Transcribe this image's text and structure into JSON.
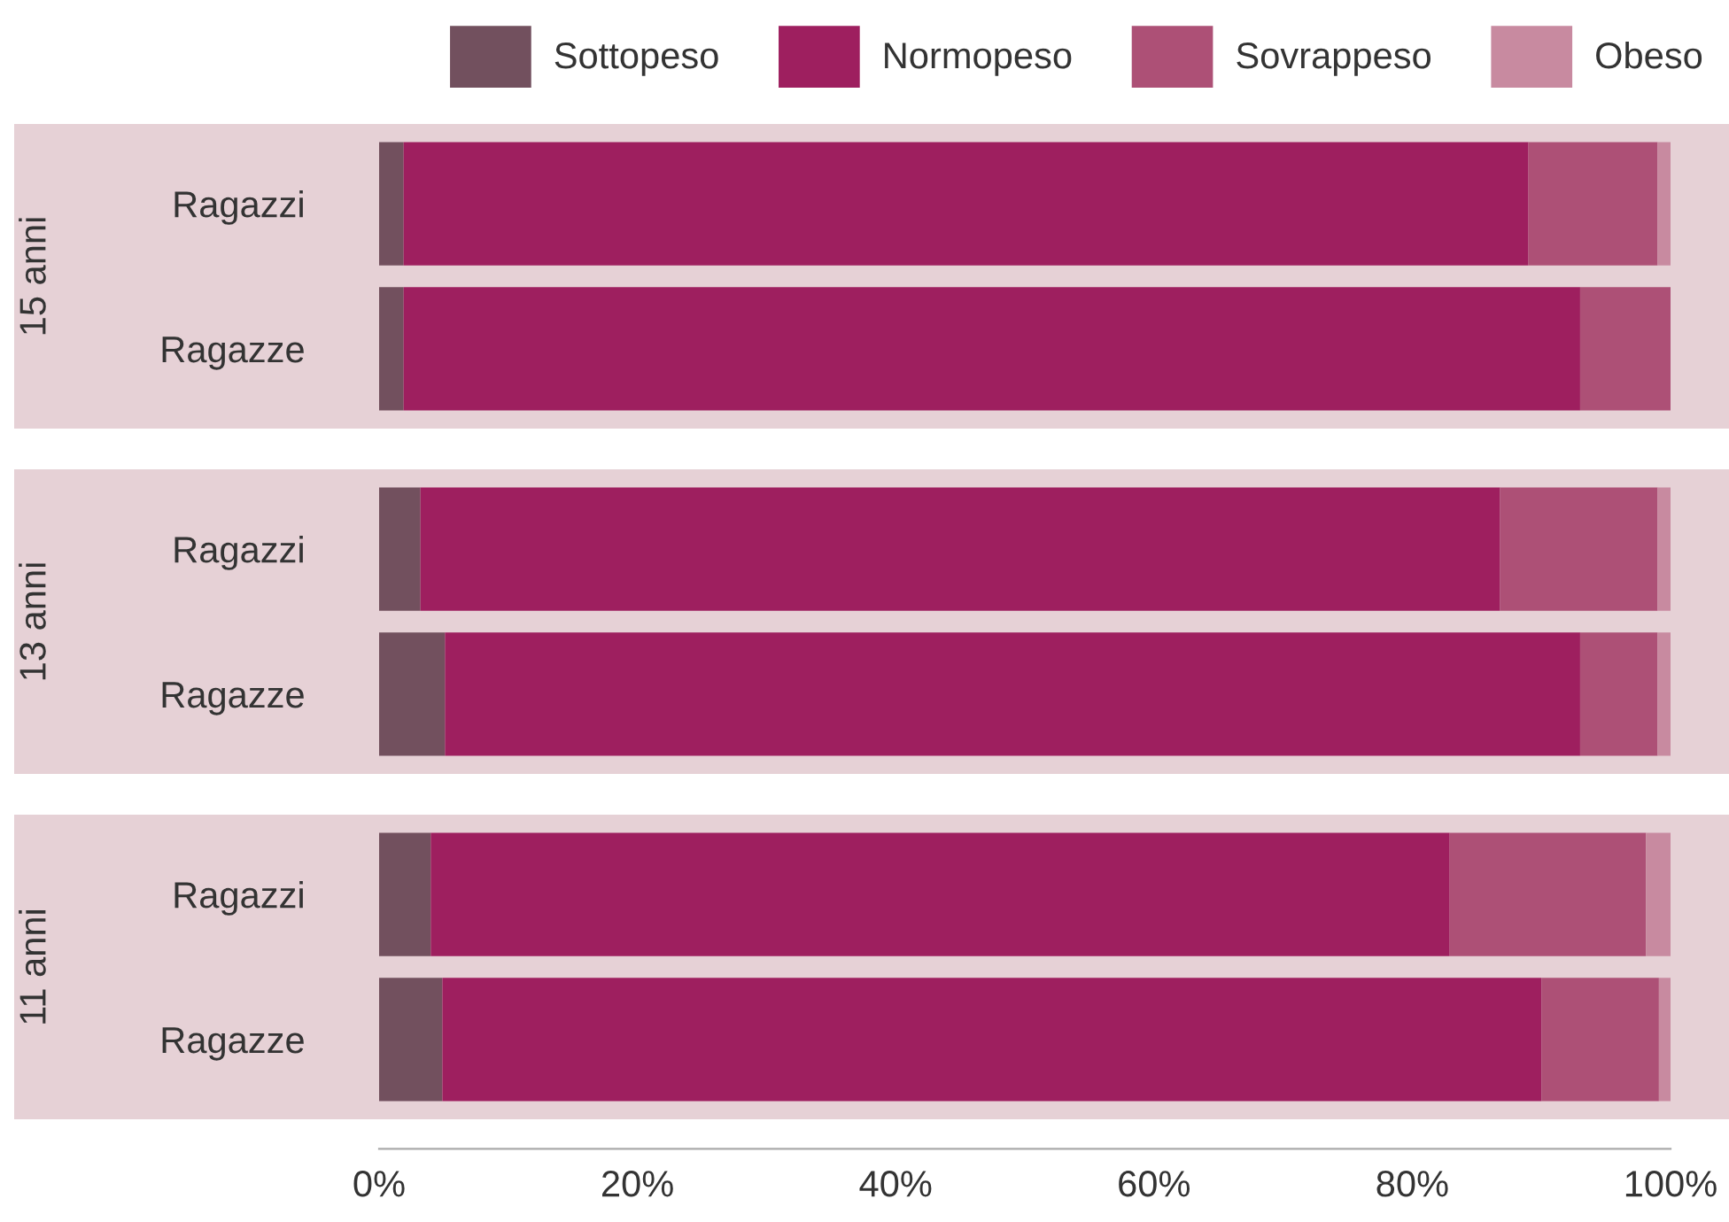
{
  "chart_data": [
    {
      "type": "bar",
      "orientation": "horizontal",
      "stacked": true,
      "ylabel": "15 anni",
      "categories": [
        "Ragazzi",
        "Ragazze"
      ],
      "series": [
        {
          "name": "Sottopeso",
          "color": "#72505e",
          "values": [
            1.9,
            1.9
          ]
        },
        {
          "name": "Normopeso",
          "color": "#9e1f5f",
          "values": [
            87.1,
            91.1
          ]
        },
        {
          "name": "Sovrappeso",
          "color": "#ad5076",
          "values": [
            10.0,
            7.0
          ]
        },
        {
          "name": "Obeso",
          "color": "#c88aa0",
          "values": [
            1.0,
            0
          ]
        }
      ],
      "xlim": [
        0,
        100
      ],
      "tick_labels": "y",
      "legend": "top right",
      "grid": false
    },
    {
      "type": "bar",
      "orientation": "horizontal",
      "stacked": true,
      "ylabel": "13 anni",
      "categories": [
        "Ragazzi",
        "Ragazze"
      ],
      "series": [
        {
          "color": "#72505e",
          "values": [
            3.2,
            5.1
          ]
        },
        {
          "color": "#9e1f5f",
          "values": [
            83.6,
            87.9
          ]
        },
        {
          "color": "#ad5076",
          "values": [
            12.2,
            6.0
          ]
        },
        {
          "color": "#c88aa0",
          "values": [
            1.0,
            1.0
          ]
        }
      ],
      "xlim": [
        0,
        100
      ],
      "tick_labels": "y",
      "grid": false
    },
    {
      "type": "bar",
      "orientation": "horizontal",
      "stacked": true,
      "ylabel": "11 anni",
      "categories": [
        "Ragazzi",
        "Ragazze"
      ],
      "series": [
        {
          "color": "#72505e",
          "values": [
            4.0,
            4.9
          ]
        },
        {
          "color": "#9e1f5f",
          "values": [
            78.9,
            85.1
          ]
        },
        {
          "color": "#ad5076",
          "values": [
            15.2,
            9.1
          ]
        },
        {
          "color": "#c88aa0",
          "values": [
            1.9,
            1.0
          ]
        }
      ],
      "xlim": [
        0,
        100
      ],
      "xticks": [
        {
          "value": 0,
          "label": "0%"
        },
        {
          "value": 20,
          "label": "20%"
        },
        {
          "value": 40,
          "label": "40%"
        },
        {
          "value": 60,
          "label": "60%"
        },
        {
          "value": 80,
          "label": "80%"
        },
        {
          "value": 100,
          "label": "100%"
        }
      ],
      "grid": false
    }
  ]
}
